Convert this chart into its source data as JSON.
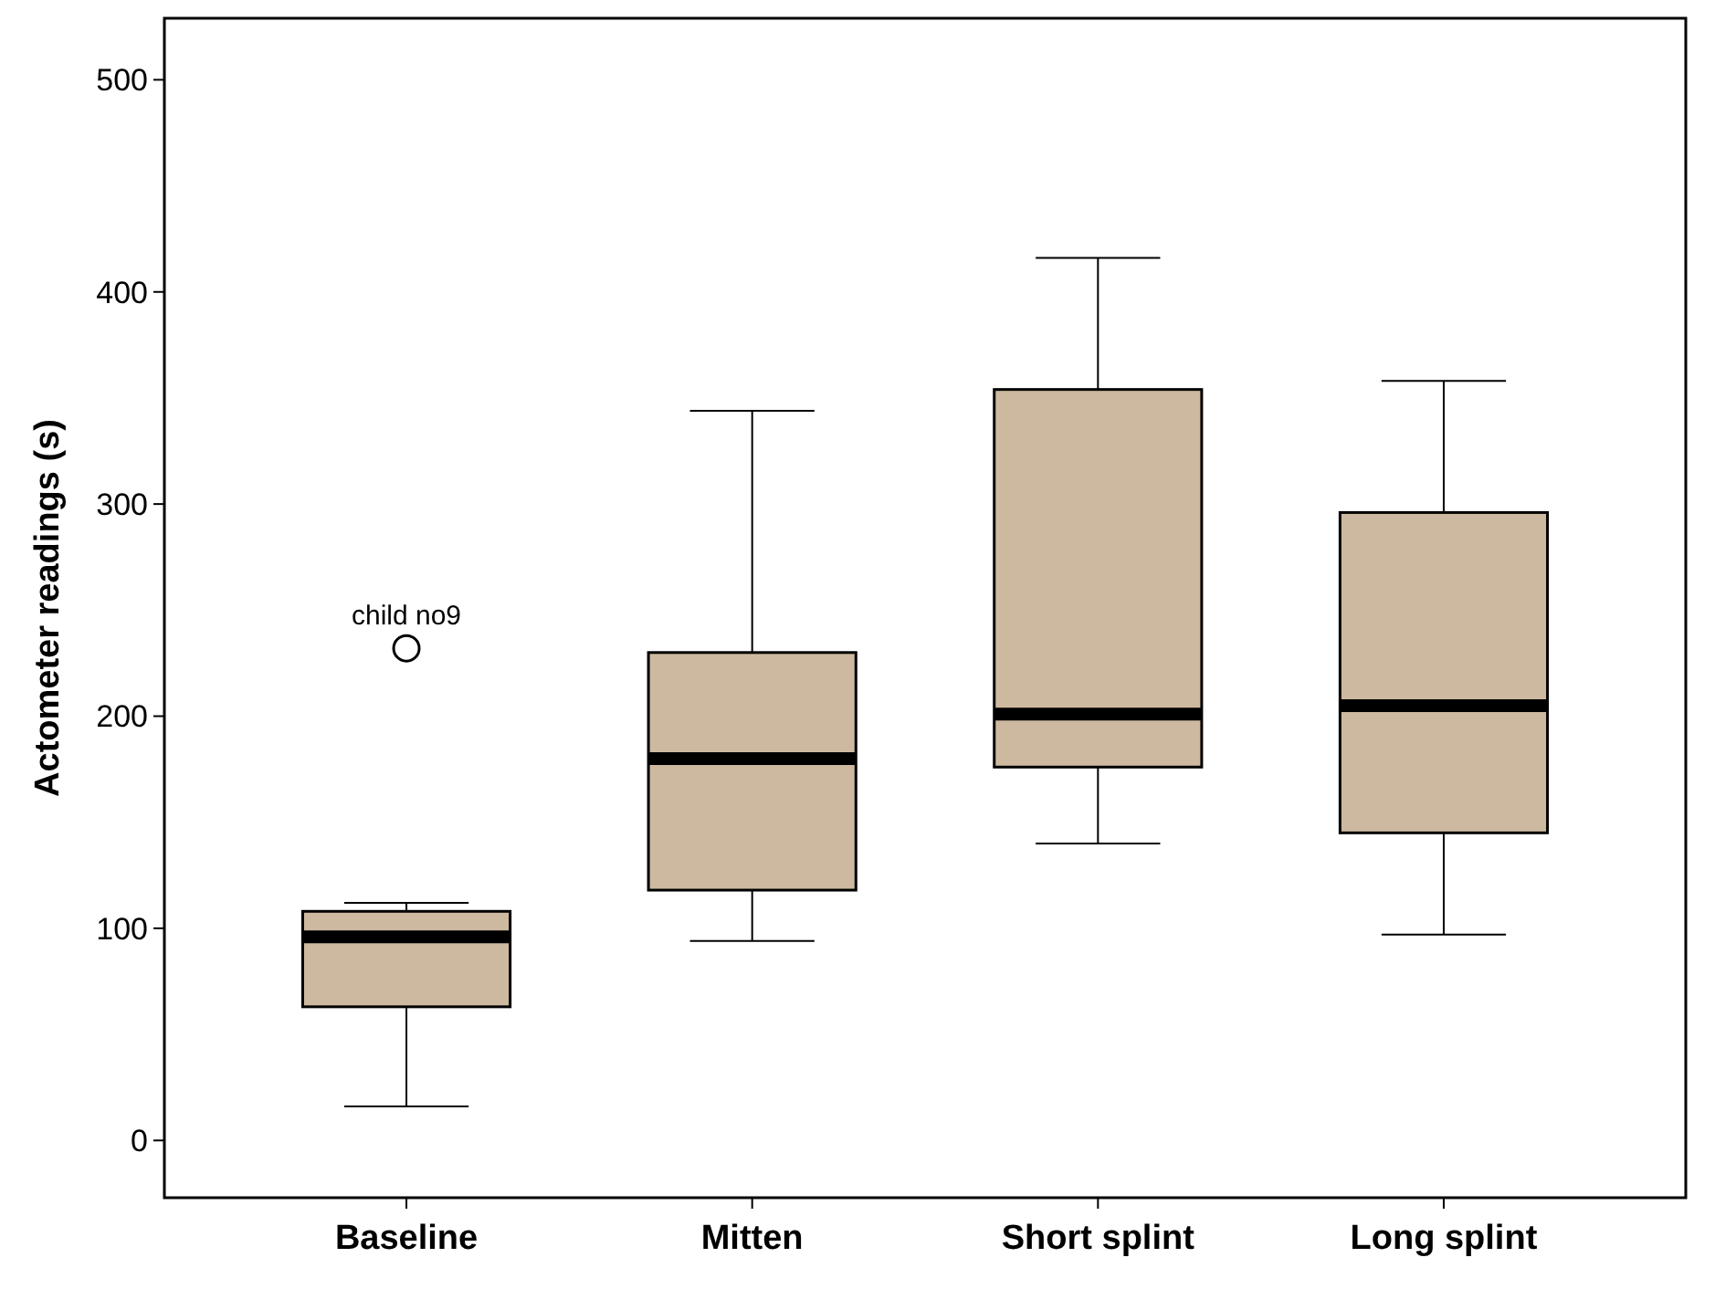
{
  "chart_data": {
    "type": "box",
    "ylabel": "Actometer readings (s)",
    "categories": [
      "Baseline",
      "Mitten",
      "Short splint",
      "Long splint"
    ],
    "color": "#cdb9a0",
    "boxes": [
      {
        "low": 16,
        "q1": 63,
        "median": 96,
        "q3": 108,
        "high": 112,
        "outliers": [
          232
        ]
      },
      {
        "low": 94,
        "q1": 118,
        "median": 180,
        "q3": 230,
        "high": 344
      },
      {
        "low": 140,
        "q1": 176,
        "median": 201,
        "q3": 354,
        "high": 416
      },
      {
        "low": 97,
        "q1": 145,
        "median": 205,
        "q3": 296,
        "high": 358
      }
    ],
    "ylim": [
      -27,
      529
    ],
    "yticks": [
      0,
      100,
      200,
      300,
      400,
      500
    ],
    "grid": false,
    "annotations": [
      "child no9"
    ]
  }
}
